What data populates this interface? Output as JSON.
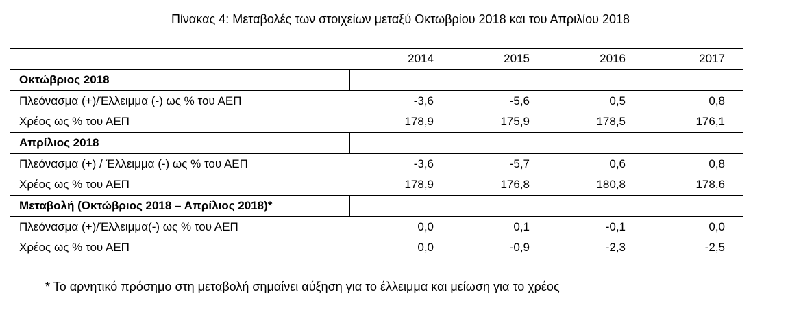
{
  "title": "Πίνακας 4: Μεταβολές των στοιχείων μεταξύ Οκτωβρίου 2018 και του Απριλίου 2018",
  "table": {
    "columns": [
      "2014",
      "2015",
      "2016",
      "2017"
    ],
    "sections": [
      {
        "heading": "Οκτώβριος 2018",
        "rows": [
          {
            "label": "Πλεόνασμα (+)/Έλλειμμα (-) ως % του ΑΕΠ",
            "values": [
              "-3,6",
              "-5,6",
              "0,5",
              "0,8"
            ]
          },
          {
            "label": "Χρέος ως % του ΑΕΠ",
            "values": [
              "178,9",
              "175,9",
              "178,5",
              "176,1"
            ]
          }
        ]
      },
      {
        "heading": "Απρίλιος 2018",
        "rows": [
          {
            "label": "Πλεόνασμα (+) / Έλλειμμα (-) ως % του ΑΕΠ",
            "values": [
              "-3,6",
              "-5,7",
              "0,6",
              "0,8"
            ]
          },
          {
            "label": "Χρέος ως % του ΑΕΠ",
            "values": [
              "178,9",
              "176,8",
              "180,8",
              "178,6"
            ]
          }
        ]
      },
      {
        "heading": "Μεταβολή (Οκτώβριος 2018 – Απρίλιος 2018)*",
        "rows": [
          {
            "label": "Πλεόνασμα (+)/Έλλειμμα(-) ως % του ΑΕΠ",
            "values": [
              "0,0",
              "0,1",
              "-0,1",
              "0,0"
            ]
          },
          {
            "label": "Χρέος ως % του ΑΕΠ",
            "values": [
              "0,0",
              "-0,9",
              "-2,3",
              "-2,5"
            ]
          }
        ]
      }
    ]
  },
  "footnote": "* Το αρνητικό πρόσημο στη μεταβολή σημαίνει αύξηση για το έλλειμμα και μείωση για το χρέος"
}
